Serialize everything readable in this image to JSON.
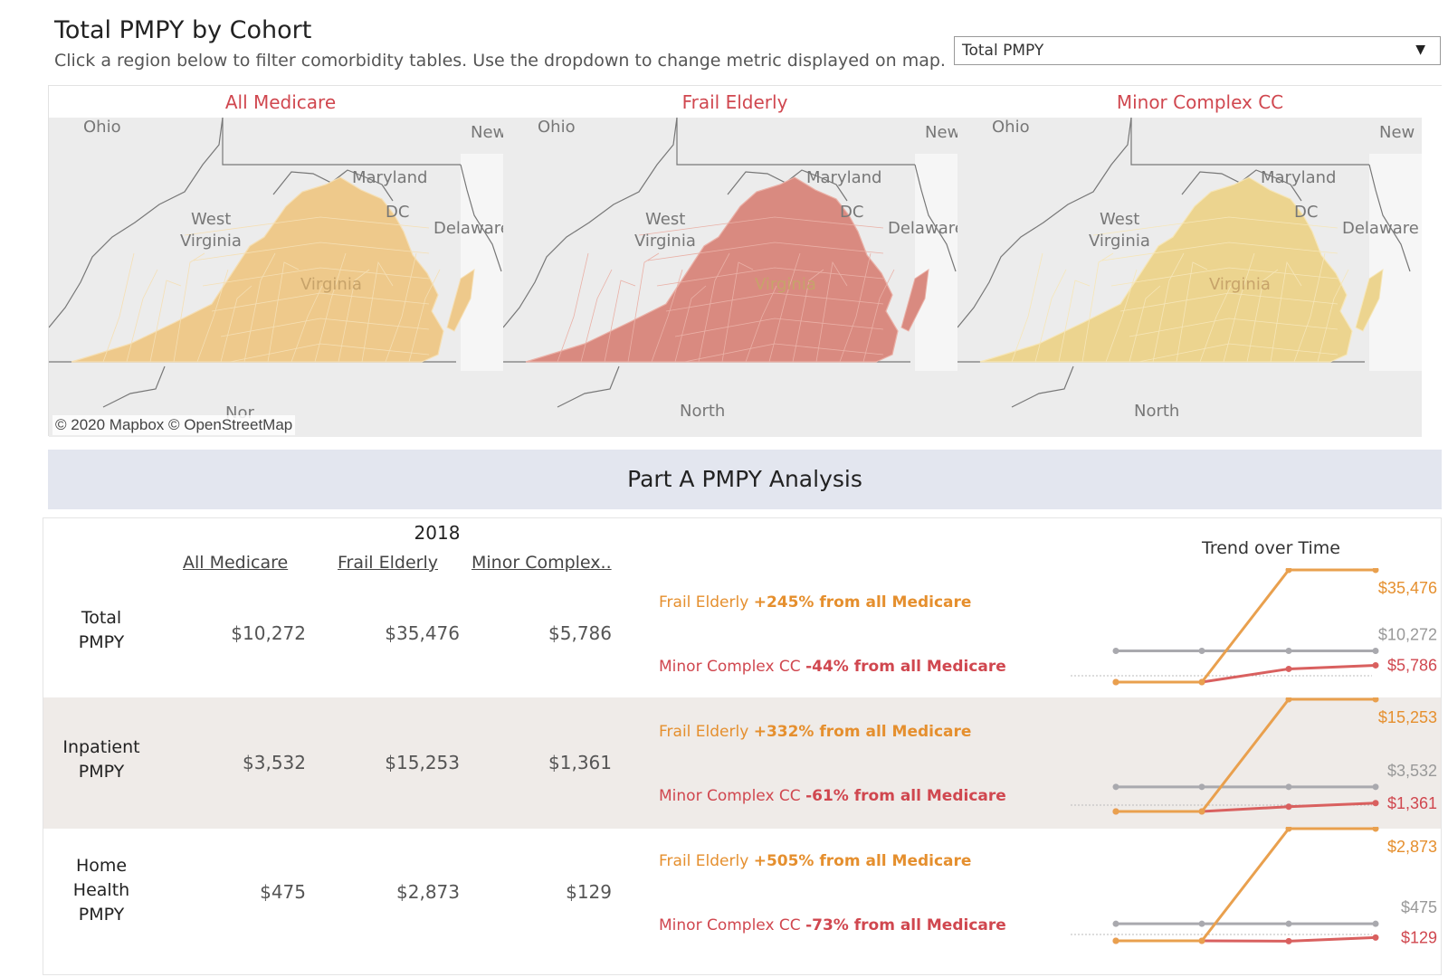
{
  "header": {
    "title": "Total PMPY by Cohort",
    "subtitle": "Click a region below to filter comorbidity tables. Use the dropdown to change metric displayed on map."
  },
  "metric_dropdown": {
    "selected": "Total PMPY"
  },
  "maps": [
    {
      "title": "All Medicare",
      "fill": "#eec98b",
      "stroke": "#f5dfb4"
    },
    {
      "title": "Frail Elderly",
      "fill": "#d98a80",
      "stroke": "#eab0a6"
    },
    {
      "title": "Minor Complex CC",
      "fill": "#ecd48f",
      "stroke": "#f6e6b8"
    }
  ],
  "map_labels": {
    "ohio": "Ohio",
    "new": "New",
    "maryland": "Maryland",
    "dc": "DC",
    "west": "West",
    "virginia_w": "Virginia",
    "delaware": "Delaware",
    "virginia": "Virginia",
    "north": "North",
    "north_cut": "Nor"
  },
  "attribution": "© 2020 Mapbox  © OpenStreetMap",
  "section_title": "Part A PMPY Analysis",
  "table": {
    "year": "2018",
    "columns": [
      "All Medicare",
      "Frail Elderly",
      "Minor Complex.."
    ],
    "trend_title": "Trend over Time",
    "rows": [
      {
        "label": [
          "Total",
          "PMPY"
        ],
        "values": [
          "$10,272",
          "$35,476",
          "$5,786"
        ],
        "frail_prefix": "Frail Elderly ",
        "frail_change": "+245% from all Medicare",
        "minor_prefix": "Minor Complex CC ",
        "minor_change": "-44% from all Medicare",
        "trend_labels": [
          "$35,476",
          "$10,272",
          "$5,786"
        ]
      },
      {
        "label": [
          "Inpatient",
          "PMPY"
        ],
        "values": [
          "$3,532",
          "$15,253",
          "$1,361"
        ],
        "frail_prefix": "Frail Elderly ",
        "frail_change": "+332% from all Medicare",
        "minor_prefix": "Minor Complex CC ",
        "minor_change": "-61% from all Medicare",
        "trend_labels": [
          "$15,253",
          "$3,532",
          "$1,361"
        ]
      },
      {
        "label": [
          "Home",
          "Health",
          "PMPY"
        ],
        "values": [
          "$475",
          "$2,873",
          "$129"
        ],
        "frail_prefix": "Frail Elderly ",
        "frail_change": "+505% from all Medicare",
        "minor_prefix": "Minor Complex CC ",
        "minor_change": "-73% from all Medicare",
        "trend_labels": [
          "$2,873",
          "$475",
          "$129"
        ]
      }
    ]
  },
  "colors": {
    "frail": "#e9a04e",
    "minor": "#d9605f",
    "all": "#a9a9ae",
    "accent_red": "#d0474f",
    "accent_orange": "#e58f2e"
  }
}
